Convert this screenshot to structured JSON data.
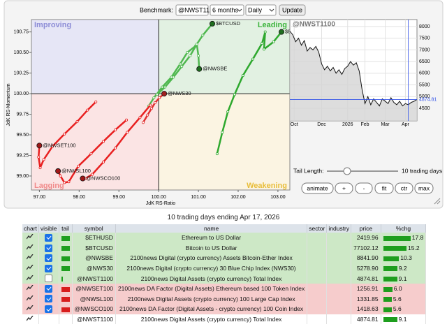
{
  "toolbar": {
    "benchmark_label": "Benchmark:",
    "benchmark": "@NWST11(",
    "period": "6 months",
    "interval": "Daily",
    "update": "Update"
  },
  "chart_data": [
    {
      "type": "rrg",
      "xlabel": "JdK RS-Ratio",
      "ylabel": "JdK RS-Momentum",
      "quadrants": [
        {
          "name": "Improving",
          "corner": "top-left",
          "color": "#e6e6f6",
          "text_color": "#8c8cd6"
        },
        {
          "name": "Leading",
          "corner": "top-right",
          "color": "#e2f1e2",
          "text_color": "#3cb43c"
        },
        {
          "name": "Lagging",
          "corner": "bottom-left",
          "color": "#fbe4e4",
          "text_color": "#f08a8a"
        },
        {
          "name": "Weakening",
          "corner": "bottom-right",
          "color": "#fbf4e2",
          "text_color": "#e8bd3a"
        }
      ],
      "center": [
        100,
        100
      ],
      "xlim": [
        96.8,
        103.3
      ],
      "xticks": [
        {
          "value": 97,
          "label": "97.00"
        },
        {
          "value": 98,
          "label": "98.00"
        },
        {
          "value": 99,
          "label": "99.00"
        },
        {
          "value": 100,
          "label": "100.00"
        },
        {
          "value": 101,
          "label": "101.00"
        },
        {
          "value": 102,
          "label": "102.00"
        },
        {
          "value": 103,
          "label": "103.00"
        }
      ],
      "ylim": [
        98.83,
        100.9
      ],
      "yticks": [
        {
          "value": 99,
          "label": "99.00"
        },
        {
          "value": 99.25,
          "label": "99.25"
        },
        {
          "value": 99.5,
          "label": "99.50"
        },
        {
          "value": 99.75,
          "label": "99.75"
        },
        {
          "value": 100,
          "label": "100.00"
        },
        {
          "value": 100.25,
          "label": "100.25"
        },
        {
          "value": 100.5,
          "label": "100.50"
        },
        {
          "value": 100.75,
          "label": "100.75"
        }
      ],
      "series": [
        {
          "name": "$ETHUSD",
          "color": "#2ea82e",
          "head_color": "#1f6e1f",
          "x": [
            101.47,
            101.6,
            101.74,
            101.91,
            102.12,
            102.37,
            102.6,
            102.68,
            102.65,
            102.89,
            103.09
          ],
          "y": [
            99.27,
            99.53,
            99.78,
            99.99,
            100.22,
            100.42,
            100.61,
            100.75,
            100.54,
            100.63,
            100.75
          ]
        },
        {
          "name": "$BTCUSD",
          "color": "#4fb84f",
          "head_color": "#1f6e1f",
          "x": [
            99.75,
            99.88,
            100.09,
            100.32,
            100.54,
            100.72,
            100.93,
            101.11,
            101.35
          ],
          "y": [
            99.85,
            99.95,
            100.08,
            100.2,
            100.36,
            100.5,
            100.58,
            100.71,
            100.85
          ]
        },
        {
          "name": "@NWSBE",
          "color": "#4fb84f",
          "head_color": "#1f6e1f",
          "x": [
            99.96,
            100.16,
            100.37,
            100.58,
            100.79,
            100.96,
            101.0,
            101.02
          ],
          "y": [
            99.99,
            100.08,
            100.2,
            100.33,
            100.46,
            100.6,
            100.46,
            100.3
          ]
        },
        {
          "name": "@NWS30",
          "color": "#e03030",
          "head_color": "#a02020",
          "x": [
            99.61,
            99.72,
            99.82,
            99.91,
            100.02,
            100.14
          ],
          "y": [
            99.65,
            99.74,
            99.82,
            99.89,
            99.95,
            100.0
          ]
        },
        {
          "name": "@NWSET100",
          "color": "#e82020",
          "head_color": "#a01818",
          "x": [
            98.42,
            98.21,
            97.95,
            97.63,
            97.33,
            97.11,
            97.02,
            96.98,
            97.0
          ],
          "y": [
            99.9,
            99.8,
            99.66,
            99.51,
            99.36,
            99.2,
            99.1,
            99.23,
            99.37
          ]
        },
        {
          "name": "@NWSL100",
          "color": "#e82020",
          "head_color": "#a01818",
          "x": [
            99.19,
            98.91,
            98.61,
            98.3,
            97.98,
            97.74,
            97.63,
            97.53,
            97.47
          ],
          "y": [
            99.68,
            99.56,
            99.42,
            99.27,
            99.12,
            98.93,
            98.92,
            99.0,
            99.06
          ]
        },
        {
          "name": "@NWSCO100",
          "color": "#e82020",
          "head_color": "#a01818",
          "x": [
            99.79,
            99.53,
            99.21,
            98.91,
            98.61,
            98.33,
            98.16,
            98.09
          ],
          "y": [
            99.86,
            99.71,
            99.53,
            99.34,
            99.17,
            99.02,
            98.97,
            98.97
          ]
        }
      ]
    },
    {
      "type": "line",
      "title": "@NWST1100",
      "color": "#111111",
      "fill": "#d4d4d4",
      "values": [
        7800,
        7650,
        7350,
        7500,
        7200,
        7400,
        6950,
        7100,
        7000,
        7150,
        6900,
        6400,
        6150,
        6300,
        6100,
        6250,
        6000,
        6150,
        5950,
        6200,
        6300,
        6500,
        6350,
        6450,
        6100,
        5300,
        4700,
        5000,
        4650,
        4900,
        4750,
        4600,
        4900,
        4800,
        4700,
        4950,
        4750,
        4650,
        4800,
        4600,
        4700,
        4650,
        4750,
        4800,
        4874.81
      ],
      "xlim": [
        0,
        44
      ],
      "xticks": [
        {
          "value": 1.5,
          "label": "Oct"
        },
        {
          "value": 11,
          "label": "Dec"
        },
        {
          "value": 20,
          "label": "2026"
        },
        {
          "value": 26,
          "label": "Feb"
        },
        {
          "value": 33,
          "label": "Mar"
        },
        {
          "value": 40,
          "label": "Apr"
        }
      ],
      "ylim": [
        3960,
        8300
      ],
      "yticks": [
        4500,
        5000,
        5500,
        6000,
        6500,
        7000,
        7500,
        8000
      ],
      "reference_line": 4874.81,
      "reference_color": "#3050e8"
    }
  ],
  "controls": {
    "tail_length_label": "Tail Length:",
    "tail_length": "10 trading days",
    "buttons": [
      "animate",
      "+",
      "-",
      "fit",
      "ctr",
      "max"
    ]
  },
  "caption": "10 trading days ending Apr 17, 2026",
  "table": {
    "columns": [
      "chart",
      "visible",
      "tail",
      "symbol",
      "name",
      "sector",
      "industry",
      "price",
      "%chg"
    ],
    "rows": [
      {
        "symbol": "$ETHUSD",
        "name": "Ethereum to US Dollar",
        "price": "2419.96",
        "change": 17.8,
        "visible": true,
        "tail_color": "#1e9e1e",
        "row_color": "#cde8c6"
      },
      {
        "symbol": "$BTCUSD",
        "name": "Bitcoin to US Dollar",
        "price": "77102.12",
        "change": 15.2,
        "visible": true,
        "tail_color": "#1e9e1e",
        "row_color": "#cde8c6"
      },
      {
        "symbol": "@NWSBE",
        "name": "2100news Digital (crypto currency) Assets Bitcoin-Ether Index",
        "price": "8841.90",
        "change": 10.3,
        "visible": true,
        "tail_color": "#1e9e1e",
        "row_color": "#cde8c6"
      },
      {
        "symbol": "@NWS30",
        "name": "2100news Digital (crypto currency) 30 Blue Chip Index (NWS30)",
        "price": "5278.90",
        "change": 9.2,
        "visible": true,
        "tail_color": "#1e9e1e",
        "row_color": "#cde8c6"
      },
      {
        "symbol": "@NWST1100",
        "name": "2100news Digital Assets (crypto currency) Total Index",
        "price": "4874.81",
        "change": 9.1,
        "visible": false,
        "tail_color": "#1e9e1e",
        "row_color": "#cde8c6"
      },
      {
        "symbol": "@NWSET100",
        "name": "2100news DA Factor (Digital Assets) Ethereum based 100 Token Index",
        "price": "1256.91",
        "change": {
          "value": 6,
          "label": "6.0"
        },
        "visible": true,
        "tail_color": "#d81c1c",
        "row_color": "#f6cccc"
      },
      {
        "symbol": "@NWSL100",
        "name": "2100news Digital Assets (crypto currency) 100 Large Cap Index",
        "price": "1331.85",
        "change": 5.6,
        "visible": true,
        "tail_color": "#d81c1c",
        "row_color": "#f6cccc"
      },
      {
        "symbol": "@NWSCO100",
        "name": "2100news DA Factor (Digital Assets - crypto currency) 100 Coin Index",
        "price": "1418.63",
        "change": 5.6,
        "visible": true,
        "tail_color": "#d81c1c",
        "row_color": "#f6cccc"
      },
      {
        "symbol": "@NWST1100",
        "name": "2100news Digital Assets (crypto currency) Total Index",
        "price": "4874.81",
        "change": 9.1,
        "row_color": "#ffffff"
      }
    ]
  }
}
